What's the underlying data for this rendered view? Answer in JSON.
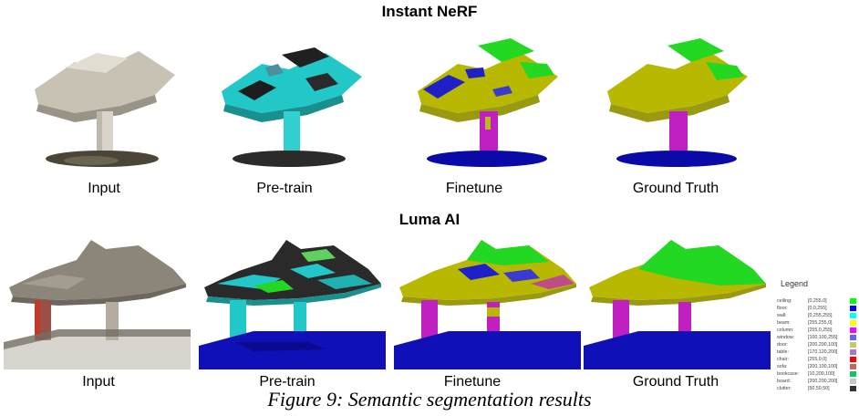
{
  "sections": [
    {
      "title": "Instant NeRF",
      "captions": [
        "Input",
        "Pre-train",
        "Finetune",
        "Ground Truth"
      ]
    },
    {
      "title": "Luma AI",
      "captions": [
        "Input",
        "Pre-train",
        "Finetune",
        "Ground Truth"
      ]
    }
  ],
  "figure_caption": "Figure 9: Semantic segmentation results",
  "legend": {
    "title": "Legend",
    "items": [
      {
        "name": "ceiling:",
        "rgb": "[0,255,0]",
        "color": "#00ff00"
      },
      {
        "name": "floor:",
        "rgb": "[0,0,255]",
        "color": "#0000ff"
      },
      {
        "name": "wall:",
        "rgb": "[0,255,255]",
        "color": "#00ffff"
      },
      {
        "name": "beam:",
        "rgb": "[255,255,0]",
        "color": "#ffff00"
      },
      {
        "name": "column:",
        "rgb": "[255,0,255]",
        "color": "#ff00ff"
      },
      {
        "name": "window:",
        "rgb": "[100,100,255]",
        "color": "#6464ff"
      },
      {
        "name": "door:",
        "rgb": "[200,200,100]",
        "color": "#c8c864"
      },
      {
        "name": "table:",
        "rgb": "[170,120,200]",
        "color": "#aa78c8"
      },
      {
        "name": "chair:",
        "rgb": "[255,0,0]",
        "color": "#ff0000"
      },
      {
        "name": "sofa:",
        "rgb": "[200,100,100]",
        "color": "#c86464"
      },
      {
        "name": "bookcase:",
        "rgb": "[10,200,100]",
        "color": "#0ac864"
      },
      {
        "name": "board:",
        "rgb": "[200,200,200]",
        "color": "#c8c8c8"
      },
      {
        "name": "clutter:",
        "rgb": "[50,50,50]",
        "color": "#323232"
      }
    ]
  }
}
